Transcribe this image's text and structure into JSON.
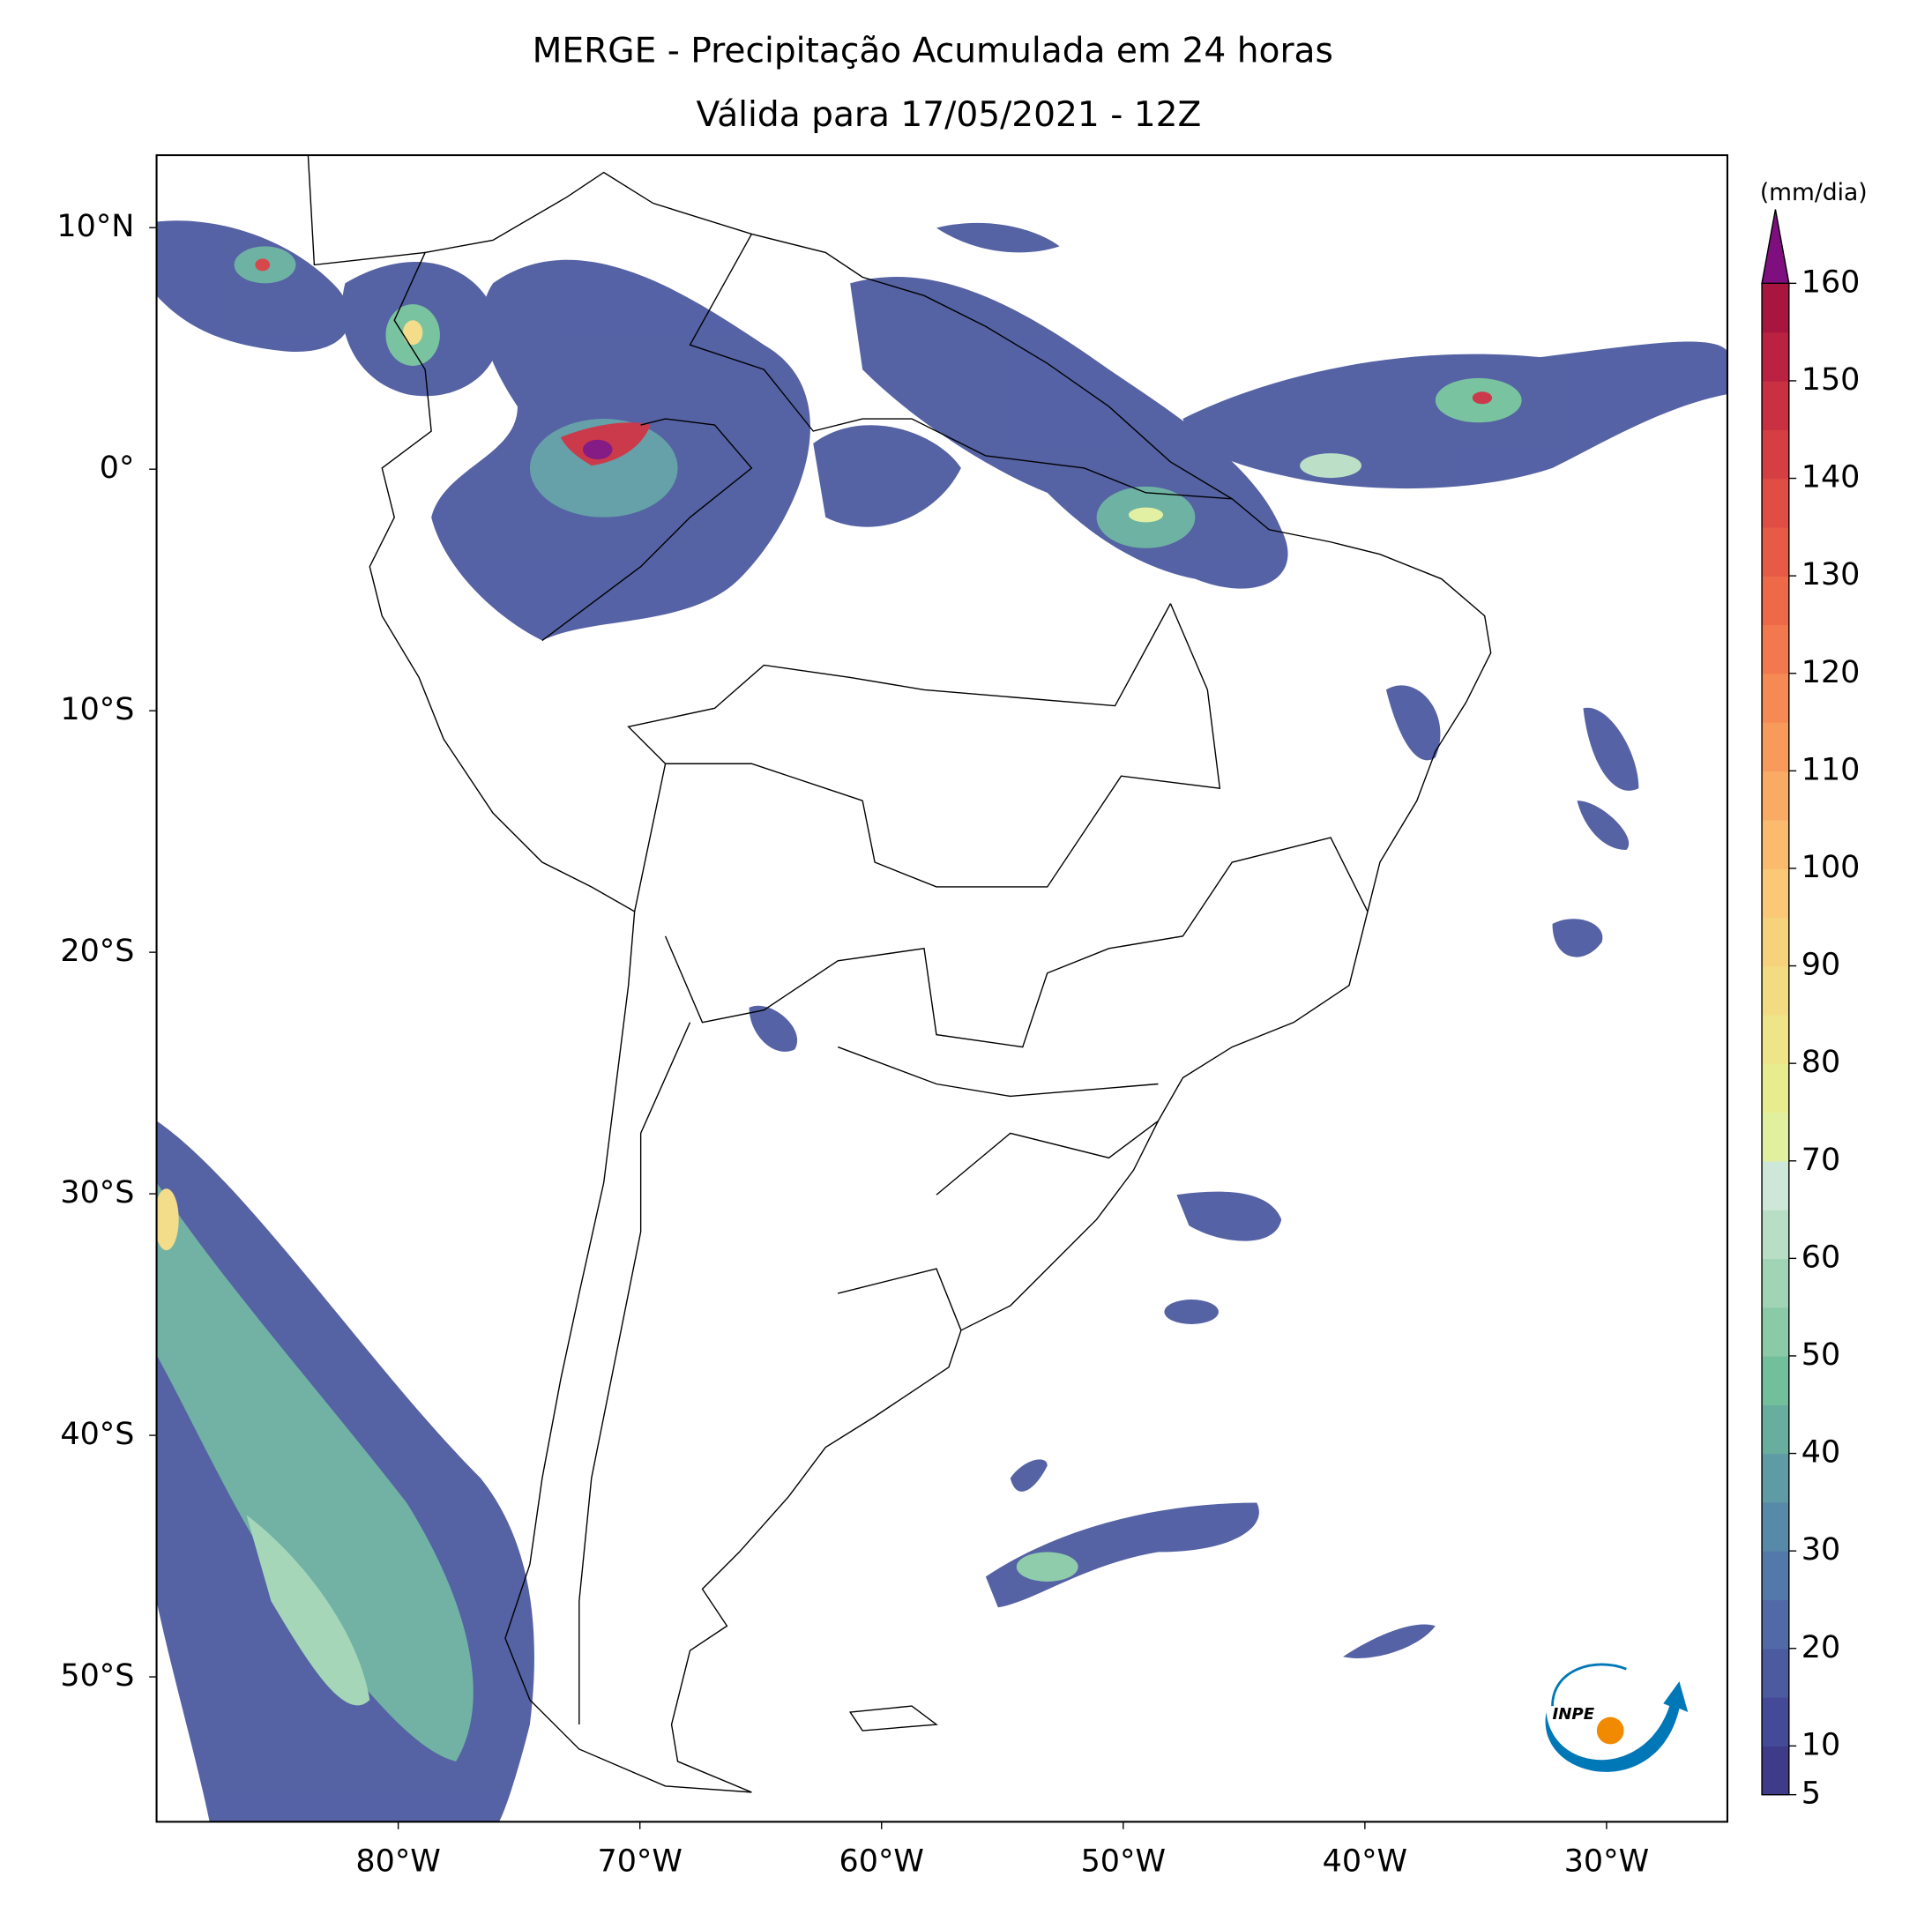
{
  "title": "MERGE - Precipitação Acumulada em 24 horas",
  "subtitle": "Válida para 17/05/2021 - 12Z",
  "map": {
    "xlim": [
      -90,
      -25
    ],
    "ylim": [
      -56,
      13
    ],
    "xticks": [
      {
        "value": -80,
        "label": "80°W"
      },
      {
        "value": -70,
        "label": "70°W"
      },
      {
        "value": -60,
        "label": "60°W"
      },
      {
        "value": -50,
        "label": "50°W"
      },
      {
        "value": -40,
        "label": "40°W"
      },
      {
        "value": -30,
        "label": "30°W"
      }
    ],
    "yticks": [
      {
        "value": 10,
        "label": "10°N"
      },
      {
        "value": 0,
        "label": "0°"
      },
      {
        "value": -10,
        "label": "10°S"
      },
      {
        "value": -20,
        "label": "20°S"
      },
      {
        "value": -30,
        "label": "30°S"
      },
      {
        "value": -40,
        "label": "40°S"
      },
      {
        "value": -50,
        "label": "50°S"
      }
    ]
  },
  "colorbar": {
    "unit": "(mm/dia)",
    "levels": [
      5,
      10,
      15,
      20,
      25,
      30,
      35,
      40,
      45,
      50,
      55,
      60,
      65,
      70,
      75,
      80,
      85,
      90,
      95,
      100,
      105,
      110,
      115,
      120,
      125,
      130,
      135,
      140,
      145,
      150,
      155,
      160
    ],
    "colors": [
      "#3e3b88",
      "#454a98",
      "#4c5aa0",
      "#5169a6",
      "#5378aa",
      "#5789a8",
      "#5e9ba4",
      "#67ae9f",
      "#72c09b",
      "#8acaa7",
      "#a1d4b5",
      "#b8dec5",
      "#cde8d8",
      "#e0f09e",
      "#e8ec8f",
      "#eee48a",
      "#f3db84",
      "#f7d27d",
      "#fac877",
      "#fbba6d",
      "#f9aa64",
      "#f79a5c",
      "#f58a54",
      "#f2794d",
      "#ee6948",
      "#e75b46",
      "#df4d44",
      "#d53f43",
      "#c93041",
      "#bb2241",
      "#a8163f"
    ],
    "extend_color": "#7f0f7e",
    "ticks": [
      5,
      10,
      20,
      30,
      40,
      50,
      60,
      70,
      80,
      90,
      100,
      110,
      120,
      130,
      140,
      150,
      160
    ]
  },
  "logo": "INPE"
}
